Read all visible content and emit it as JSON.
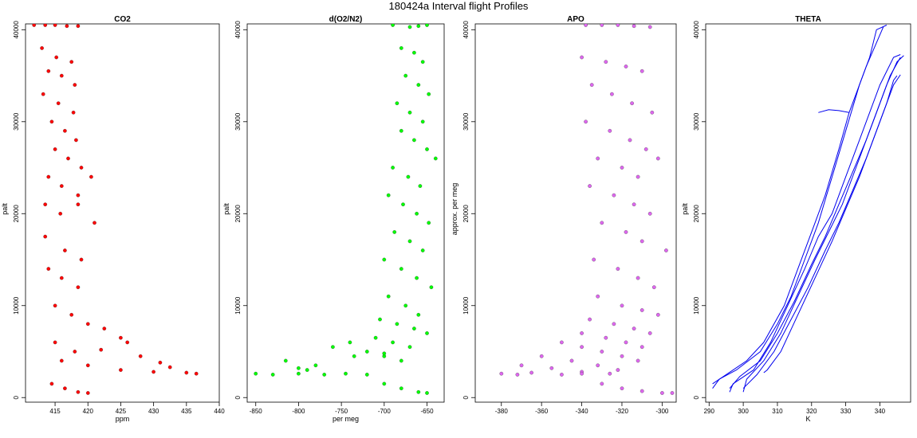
{
  "figure": {
    "title": "180424a   Interval flight Profiles"
  },
  "chart_data": [
    {
      "type": "scatter",
      "title": "CO2",
      "xlabel": "ppm",
      "ylabel": "palt",
      "xlim": [
        410.5,
        440
      ],
      "ylim": [
        -500,
        41500
      ],
      "xticks": [
        415,
        420,
        425,
        430,
        435,
        440
      ],
      "yticks": [
        0,
        10000,
        20000,
        30000,
        40000
      ],
      "color": "#ff0000",
      "series": [
        {
          "x": [
            411.8,
            413.5,
            415.0,
            416.8,
            418.5,
            413.0,
            415.2,
            417.5,
            414.0,
            416.0,
            418.0,
            413.2,
            415.5,
            417.8,
            414.5,
            416.5,
            418.2,
            415.0,
            417.0,
            419.0,
            414.0,
            416.0,
            418.5,
            420.5,
            413.5,
            415.8,
            418.5,
            421.0,
            413.5,
            416.5,
            419.0,
            414.0,
            416.0,
            418.5,
            415.0,
            417.5,
            420.0,
            422.5,
            425.0,
            426.0,
            415.0,
            418.0,
            422.0,
            428.0,
            431.0,
            432.5,
            416.0,
            420.0,
            425.0,
            430.0,
            435.0,
            436.5,
            414.5,
            416.5,
            418.5,
            420.0
          ],
          "y": [
            40500,
            40500,
            40500,
            40400,
            40400,
            38000,
            37000,
            36500,
            35500,
            35000,
            34000,
            33000,
            32000,
            31000,
            30000,
            29000,
            28000,
            27000,
            26000,
            25000,
            24000,
            23000,
            22000,
            24000,
            21000,
            20000,
            21000,
            19000,
            17500,
            16000,
            15000,
            14000,
            13000,
            12000,
            10000,
            9000,
            8000,
            7500,
            6500,
            6000,
            6000,
            5000,
            5200,
            4500,
            3800,
            3300,
            4000,
            3500,
            3000,
            2800,
            2700,
            2600,
            1500,
            1000,
            600,
            500
          ]
        }
      ]
    },
    {
      "type": "scatter",
      "title": "d(O2/N2)",
      "xlabel": "per meg",
      "ylabel": "palt",
      "xlim": [
        -860,
        -630
      ],
      "ylim": [
        -500,
        41500
      ],
      "xticks": [
        -850,
        -800,
        -750,
        -700,
        -650
      ],
      "yticks": [
        0,
        10000,
        20000,
        30000,
        40000
      ],
      "color": "#00ff00",
      "series": [
        {
          "x": [
            -690,
            -670,
            -660,
            -650,
            -680,
            -665,
            -655,
            -675,
            -660,
            -648,
            -685,
            -670,
            -655,
            -680,
            -665,
            -650,
            -640,
            -690,
            -672,
            -658,
            -695,
            -678,
            -662,
            -648,
            -688,
            -670,
            -655,
            -700,
            -680,
            -662,
            -645,
            -695,
            -675,
            -660,
            -705,
            -685,
            -665,
            -650,
            -710,
            -690,
            -670,
            -720,
            -700,
            -680,
            -740,
            -760,
            -735,
            -700,
            -780,
            -800,
            -815,
            -790,
            -850,
            -830,
            -800,
            -770,
            -745,
            -720,
            -700,
            -680,
            -660,
            -650
          ],
          "y": [
            40500,
            40300,
            40400,
            40500,
            38000,
            37500,
            36500,
            35000,
            34000,
            33000,
            32000,
            31000,
            30000,
            29000,
            28000,
            27000,
            26000,
            25000,
            24000,
            23000,
            22000,
            21000,
            20000,
            19000,
            18000,
            17000,
            16000,
            15000,
            14000,
            13000,
            12000,
            11000,
            10000,
            9000,
            8500,
            8000,
            7500,
            7000,
            6500,
            6000,
            5500,
            5000,
            4500,
            4000,
            6000,
            5500,
            4500,
            4800,
            3500,
            3200,
            4000,
            3000,
            2600,
            2500,
            2600,
            2500,
            2600,
            2500,
            1500,
            1000,
            600,
            500
          ]
        }
      ]
    },
    {
      "type": "scatter",
      "title": "APO",
      "xlabel": "",
      "ylabel": "approx. per meg",
      "xlim": [
        -393,
        -293
      ],
      "ylim": [
        -500,
        41500
      ],
      "xticks": [
        -380,
        -360,
        -340,
        -320,
        -300
      ],
      "yticks": [
        0,
        10000,
        20000,
        30000,
        40000
      ],
      "color": "#dd66ee",
      "series": [
        {
          "x": [
            -338,
            -330,
            -322,
            -314,
            -306,
            -340,
            -328,
            -318,
            -310,
            -335,
            -325,
            -315,
            -305,
            -338,
            -326,
            -316,
            -308,
            -332,
            -320,
            -312,
            -302,
            -336,
            -324,
            -314,
            -306,
            -330,
            -318,
            -310,
            -298,
            -334,
            -322,
            -312,
            -304,
            -332,
            -320,
            -310,
            -302,
            -336,
            -324,
            -314,
            -306,
            -340,
            -328,
            -318,
            -310,
            -350,
            -340,
            -330,
            -320,
            -312,
            -360,
            -345,
            -332,
            -322,
            -370,
            -355,
            -340,
            -326,
            -380,
            -372,
            -365,
            -350,
            -340,
            -330,
            -320,
            -310,
            -300,
            -295
          ],
          "y": [
            40500,
            40500,
            40500,
            40400,
            40300,
            37000,
            36500,
            36000,
            35500,
            34000,
            33000,
            32000,
            31000,
            30000,
            29000,
            28000,
            27000,
            26000,
            25000,
            24000,
            26000,
            23000,
            22000,
            21000,
            20000,
            19000,
            18000,
            17000,
            16000,
            15000,
            14000,
            13000,
            12000,
            11000,
            10000,
            9500,
            9000,
            8500,
            8000,
            7500,
            7000,
            7000,
            6500,
            6000,
            5500,
            6000,
            5500,
            5000,
            4500,
            4000,
            4500,
            4000,
            3500,
            3000,
            3500,
            3200,
            2800,
            2600,
            2600,
            2500,
            2700,
            2500,
            2600,
            1500,
            1000,
            700,
            500,
            500
          ]
        }
      ]
    },
    {
      "type": "line",
      "title": "THETA",
      "xlabel": "K",
      "ylabel": "palt",
      "xlim": [
        289,
        349
      ],
      "ylim": [
        -500,
        41500
      ],
      "xticks": [
        290,
        300,
        310,
        320,
        330,
        340
      ],
      "yticks": [
        0,
        10000,
        20000,
        30000,
        40000
      ],
      "color": "#0000ee",
      "series": [
        {
          "x": [
            291,
            293,
            298,
            305,
            310,
            314,
            318,
            322,
            326,
            330,
            334,
            337,
            339,
            342
          ],
          "y": [
            1000,
            2000,
            3000,
            5000,
            8000,
            11000,
            15000,
            19000,
            24000,
            29000,
            34000,
            37000,
            40000,
            40500
          ]
        },
        {
          "x": [
            291,
            295,
            301,
            306,
            312,
            316,
            320,
            324,
            328,
            331,
            333,
            336,
            341
          ],
          "y": [
            1500,
            2500,
            4000,
            6000,
            10000,
            14000,
            18000,
            22000,
            27000,
            31000,
            33000,
            36000,
            40300
          ]
        },
        {
          "x": [
            296,
            297,
            303,
            308,
            313,
            318,
            322,
            326,
            330,
            334,
            337,
            340,
            344,
            346
          ],
          "y": [
            600,
            1500,
            3000,
            6000,
            10000,
            14000,
            17500,
            20000,
            24000,
            28000,
            31000,
            34000,
            37000,
            37300
          ]
        },
        {
          "x": [
            296,
            299,
            305,
            310,
            315,
            320,
            324,
            328,
            332,
            336,
            339,
            342,
            345,
            347
          ],
          "y": [
            1000,
            2300,
            4000,
            7000,
            10500,
            14500,
            17500,
            21000,
            24500,
            28000,
            31000,
            34000,
            36500,
            37200
          ]
        },
        {
          "x": [
            300,
            301,
            306,
            311,
            316,
            321,
            325,
            329,
            333,
            337,
            340,
            343,
            346
          ],
          "y": [
            600,
            2000,
            4000,
            7000,
            11000,
            15000,
            18000,
            21000,
            25000,
            29000,
            32000,
            35000,
            37000
          ]
        },
        {
          "x": [
            300,
            304,
            309,
            314,
            319,
            324,
            328,
            332,
            336,
            339,
            342,
            344,
            345
          ],
          "y": [
            1000,
            2500,
            5000,
            8500,
            12000,
            16000,
            19000,
            22500,
            26000,
            29000,
            32000,
            34500,
            35000
          ]
        },
        {
          "x": [
            306,
            307,
            311,
            316,
            321,
            326,
            330,
            334,
            338,
            341,
            344,
            346
          ],
          "y": [
            2700,
            3000,
            5000,
            9000,
            13000,
            17000,
            20500,
            24000,
            28000,
            31000,
            34000,
            35100
          ]
        },
        {
          "x": [
            322,
            325,
            328,
            331
          ],
          "y": [
            31000,
            31300,
            31200,
            31000
          ]
        }
      ]
    }
  ]
}
